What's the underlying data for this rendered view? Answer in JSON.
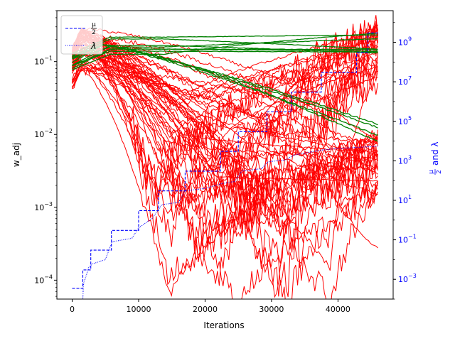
{
  "chart_data": {
    "type": "line",
    "xlabel": "Iterations",
    "ylabel": "w_adj",
    "y2label": "μ/2 and λ",
    "y2label_parts": {
      "fraction_num": "μ",
      "fraction_den": "2",
      "and_text": "and",
      "lambda": "λ"
    },
    "xlim": [
      -2300,
      48300
    ],
    "ylim": [
      5.5e-05,
      0.5
    ],
    "y2lim": [
      0.0001,
      40000000000
    ],
    "yscale": "log",
    "y2scale": "log",
    "grid": false,
    "legend_placement": "top-left",
    "x_ticks": [
      {
        "value": 0,
        "label": "0"
      },
      {
        "value": 10000,
        "label": "10000"
      },
      {
        "value": 20000,
        "label": "20000"
      },
      {
        "value": 30000,
        "label": "30000"
      },
      {
        "value": 40000,
        "label": "40000"
      }
    ],
    "y_ticks": [
      {
        "value": 0.0001,
        "base": "10",
        "exp": "−4"
      },
      {
        "value": 0.001,
        "base": "10",
        "exp": "−3"
      },
      {
        "value": 0.01,
        "base": "10",
        "exp": "−2"
      },
      {
        "value": 0.1,
        "base": "10",
        "exp": "−1"
      }
    ],
    "y2_ticks": [
      {
        "value": 0.001,
        "base": "10",
        "exp": "−3"
      },
      {
        "value": 0.1,
        "base": "10",
        "exp": "−1"
      },
      {
        "value": 10,
        "base": "10",
        "exp": "1"
      },
      {
        "value": 1000,
        "base": "10",
        "exp": "3"
      },
      {
        "value": 100000,
        "base": "10",
        "exp": "5"
      },
      {
        "value": 10000000,
        "base": "10",
        "exp": "7"
      },
      {
        "value": 1000000000,
        "base": "10",
        "exp": "9"
      }
    ],
    "legend": [
      {
        "label_kind": "fraction",
        "num": "μ",
        "den": "2",
        "style": "dashed",
        "color": "#0000ff"
      },
      {
        "label_kind": "text",
        "text": "λ",
        "style": "dotted",
        "color": "#0000ff"
      }
    ],
    "series": [
      {
        "axis": "right",
        "style": "dashed",
        "color": "#0000ff",
        "x": [
          0,
          1600,
          1600,
          2800,
          2800,
          5900,
          5900,
          10000,
          10000,
          13000,
          13000,
          17000,
          17000,
          22300,
          22300,
          25000,
          25000,
          29300,
          29300,
          33000,
          33000,
          37500,
          37500,
          42800,
          42800,
          44500,
          44500,
          46000
        ],
        "y": [
          0.00035,
          0.00035,
          0.003,
          0.003,
          0.03,
          0.03,
          0.3,
          0.3,
          3,
          3,
          30,
          30,
          300,
          300,
          3000,
          3000,
          30000,
          30000,
          300000,
          300000,
          3000000,
          3000000,
          30000000,
          30000000,
          300000000,
          300000000,
          3000000000,
          3000000000
        ]
      },
      {
        "axis": "right",
        "style": "dotted",
        "color": "#0000ff",
        "x": [
          1600,
          1700,
          2000,
          2500,
          3000,
          5000,
          6000,
          9000,
          10000,
          12000,
          13500,
          16000,
          17000,
          20000,
          22500,
          24500,
          25500,
          28500,
          29500,
          32000,
          33500,
          36000,
          37500,
          40000,
          41500,
          44000,
          45500,
          46000
        ],
        "y": [
          0.0001,
          0.0006,
          0.0012,
          0.004,
          0.006,
          0.01,
          0.08,
          0.12,
          0.4,
          1.2,
          6,
          8,
          30,
          40,
          70,
          90,
          300,
          400,
          900,
          1100,
          2000,
          2800,
          3500,
          4200,
          4500,
          5000,
          5400,
          5600
        ]
      }
    ],
    "ensemble": [
      {
        "group": "green",
        "color": "#008000",
        "count": 8,
        "start_range": [
          0.06,
          0.14
        ],
        "end_range": [
          0.13,
          0.25
        ],
        "description_free": true
      },
      {
        "group": "green-falling",
        "color": "#008000",
        "count": 4,
        "start_range": [
          0.07,
          0.12
        ],
        "end_range": [
          0.007,
          0.02
        ]
      },
      {
        "group": "red",
        "color": "#ff0000",
        "count": 56,
        "start_range": [
          0.04,
          0.17
        ],
        "end_range": [
          0.0001,
          0.3
        ]
      }
    ]
  }
}
